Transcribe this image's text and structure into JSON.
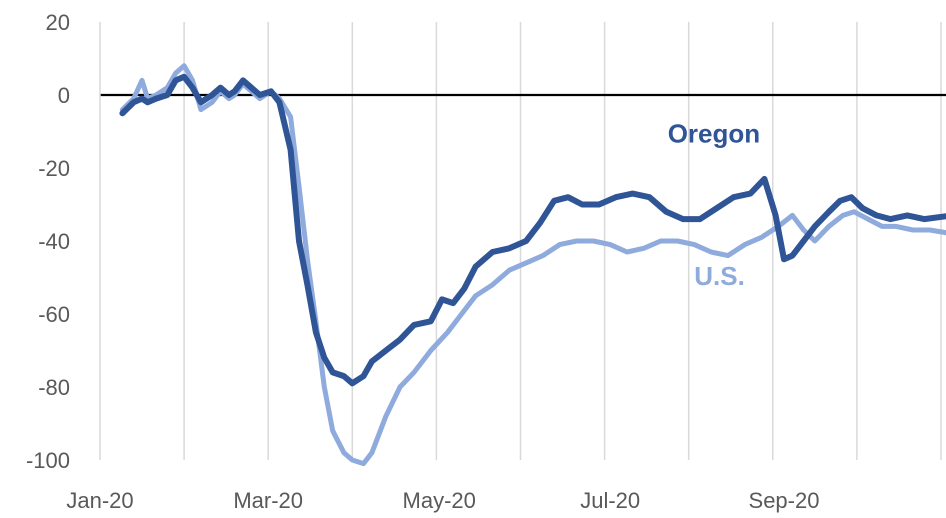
{
  "chart_data": {
    "type": "line",
    "title": "",
    "xlabel": "",
    "ylabel": "",
    "ylim": [
      -100,
      20
    ],
    "y_ticks": [
      20,
      0,
      -20,
      -40,
      -60,
      -80,
      -100
    ],
    "x_tick_labels": [
      "Jan-20",
      "Mar-20",
      "May-20",
      "Jul-20",
      "Sep-20"
    ],
    "x_tick_dates": [
      "2020-01-01",
      "2020-03-01",
      "2020-05-01",
      "2020-07-01",
      "2020-09-01"
    ],
    "xlim": [
      "2020-01-01",
      "2020-10-31"
    ],
    "grid": "vertical",
    "series": [
      {
        "name": "U.S.",
        "color": "#8FAADC",
        "label_date": "2020-08-09",
        "label_value": -52,
        "points": [
          [
            "2020-01-09",
            -4
          ],
          [
            "2020-01-13",
            -1
          ],
          [
            "2020-01-16",
            4
          ],
          [
            "2020-01-18",
            -1
          ],
          [
            "2020-01-21",
            0
          ],
          [
            "2020-01-25",
            2
          ],
          [
            "2020-01-28",
            6
          ],
          [
            "2020-01-31",
            8
          ],
          [
            "2020-02-03",
            4
          ],
          [
            "2020-02-06",
            -4
          ],
          [
            "2020-02-10",
            -2
          ],
          [
            "2020-02-13",
            1
          ],
          [
            "2020-02-16",
            -1
          ],
          [
            "2020-02-18",
            0
          ],
          [
            "2020-02-21",
            3
          ],
          [
            "2020-02-24",
            1
          ],
          [
            "2020-02-27",
            -1
          ],
          [
            "2020-03-02",
            1
          ],
          [
            "2020-03-05",
            -1
          ],
          [
            "2020-03-09",
            -6
          ],
          [
            "2020-03-12",
            -25
          ],
          [
            "2020-03-15",
            -45
          ],
          [
            "2020-03-18",
            -62
          ],
          [
            "2020-03-21",
            -80
          ],
          [
            "2020-03-24",
            -92
          ],
          [
            "2020-03-28",
            -98
          ],
          [
            "2020-03-31",
            -100
          ],
          [
            "2020-04-04",
            -101
          ],
          [
            "2020-04-07",
            -98
          ],
          [
            "2020-04-12",
            -88
          ],
          [
            "2020-04-17",
            -80
          ],
          [
            "2020-04-22",
            -76
          ],
          [
            "2020-04-28",
            -70
          ],
          [
            "2020-05-04",
            -65
          ],
          [
            "2020-05-09",
            -60
          ],
          [
            "2020-05-14",
            -55
          ],
          [
            "2020-05-20",
            -52
          ],
          [
            "2020-05-26",
            -48
          ],
          [
            "2020-06-01",
            -46
          ],
          [
            "2020-06-07",
            -44
          ],
          [
            "2020-06-13",
            -41
          ],
          [
            "2020-06-19",
            -40
          ],
          [
            "2020-06-25",
            -40
          ],
          [
            "2020-07-01",
            -41
          ],
          [
            "2020-07-07",
            -43
          ],
          [
            "2020-07-13",
            -42
          ],
          [
            "2020-07-19",
            -40
          ],
          [
            "2020-07-25",
            -40
          ],
          [
            "2020-07-31",
            -41
          ],
          [
            "2020-08-06",
            -43
          ],
          [
            "2020-08-12",
            -44
          ],
          [
            "2020-08-18",
            -41
          ],
          [
            "2020-08-24",
            -39
          ],
          [
            "2020-08-30",
            -36
          ],
          [
            "2020-09-04",
            -33
          ],
          [
            "2020-09-08",
            -37
          ],
          [
            "2020-09-12",
            -40
          ],
          [
            "2020-09-17",
            -36
          ],
          [
            "2020-09-22",
            -33
          ],
          [
            "2020-09-26",
            -32
          ],
          [
            "2020-10-01",
            -34
          ],
          [
            "2020-10-06",
            -36
          ],
          [
            "2020-10-11",
            -36
          ],
          [
            "2020-10-17",
            -37
          ],
          [
            "2020-10-23",
            -37
          ],
          [
            "2020-10-31",
            -38
          ]
        ]
      },
      {
        "name": "Oregon",
        "color": "#2F5597",
        "label_date": "2020-08-07",
        "label_value": -13,
        "points": [
          [
            "2020-01-09",
            -5
          ],
          [
            "2020-01-13",
            -2
          ],
          [
            "2020-01-16",
            -1
          ],
          [
            "2020-01-18",
            -2
          ],
          [
            "2020-01-21",
            -1
          ],
          [
            "2020-01-25",
            0
          ],
          [
            "2020-01-28",
            4
          ],
          [
            "2020-01-31",
            5
          ],
          [
            "2020-02-03",
            2
          ],
          [
            "2020-02-06",
            -2
          ],
          [
            "2020-02-10",
            0
          ],
          [
            "2020-02-13",
            2
          ],
          [
            "2020-02-16",
            0
          ],
          [
            "2020-02-18",
            1
          ],
          [
            "2020-02-21",
            4
          ],
          [
            "2020-02-24",
            2
          ],
          [
            "2020-02-27",
            0
          ],
          [
            "2020-03-02",
            1
          ],
          [
            "2020-03-05",
            -2
          ],
          [
            "2020-03-09",
            -15
          ],
          [
            "2020-03-12",
            -40
          ],
          [
            "2020-03-15",
            -52
          ],
          [
            "2020-03-18",
            -65
          ],
          [
            "2020-03-21",
            -72
          ],
          [
            "2020-03-24",
            -76
          ],
          [
            "2020-03-28",
            -77
          ],
          [
            "2020-03-31",
            -79
          ],
          [
            "2020-04-04",
            -77
          ],
          [
            "2020-04-07",
            -73
          ],
          [
            "2020-04-12",
            -70
          ],
          [
            "2020-04-17",
            -67
          ],
          [
            "2020-04-22",
            -63
          ],
          [
            "2020-04-28",
            -62
          ],
          [
            "2020-05-02",
            -56
          ],
          [
            "2020-05-06",
            -57
          ],
          [
            "2020-05-10",
            -53
          ],
          [
            "2020-05-14",
            -47
          ],
          [
            "2020-05-20",
            -43
          ],
          [
            "2020-05-26",
            -42
          ],
          [
            "2020-06-01",
            -40
          ],
          [
            "2020-06-06",
            -35
          ],
          [
            "2020-06-11",
            -29
          ],
          [
            "2020-06-16",
            -28
          ],
          [
            "2020-06-21",
            -30
          ],
          [
            "2020-06-27",
            -30
          ],
          [
            "2020-07-03",
            -28
          ],
          [
            "2020-07-09",
            -27
          ],
          [
            "2020-07-15",
            -28
          ],
          [
            "2020-07-21",
            -32
          ],
          [
            "2020-07-27",
            -34
          ],
          [
            "2020-08-02",
            -34
          ],
          [
            "2020-08-08",
            -31
          ],
          [
            "2020-08-14",
            -28
          ],
          [
            "2020-08-20",
            -27
          ],
          [
            "2020-08-25",
            -23
          ],
          [
            "2020-08-29",
            -33
          ],
          [
            "2020-09-01",
            -45
          ],
          [
            "2020-09-04",
            -44
          ],
          [
            "2020-09-08",
            -40
          ],
          [
            "2020-09-12",
            -36
          ],
          [
            "2020-09-17",
            -32
          ],
          [
            "2020-09-21",
            -29
          ],
          [
            "2020-09-25",
            -28
          ],
          [
            "2020-09-29",
            -31
          ],
          [
            "2020-10-04",
            -33
          ],
          [
            "2020-10-09",
            -34
          ],
          [
            "2020-10-15",
            -33
          ],
          [
            "2020-10-21",
            -34
          ],
          [
            "2020-10-31",
            -33
          ]
        ]
      }
    ]
  }
}
